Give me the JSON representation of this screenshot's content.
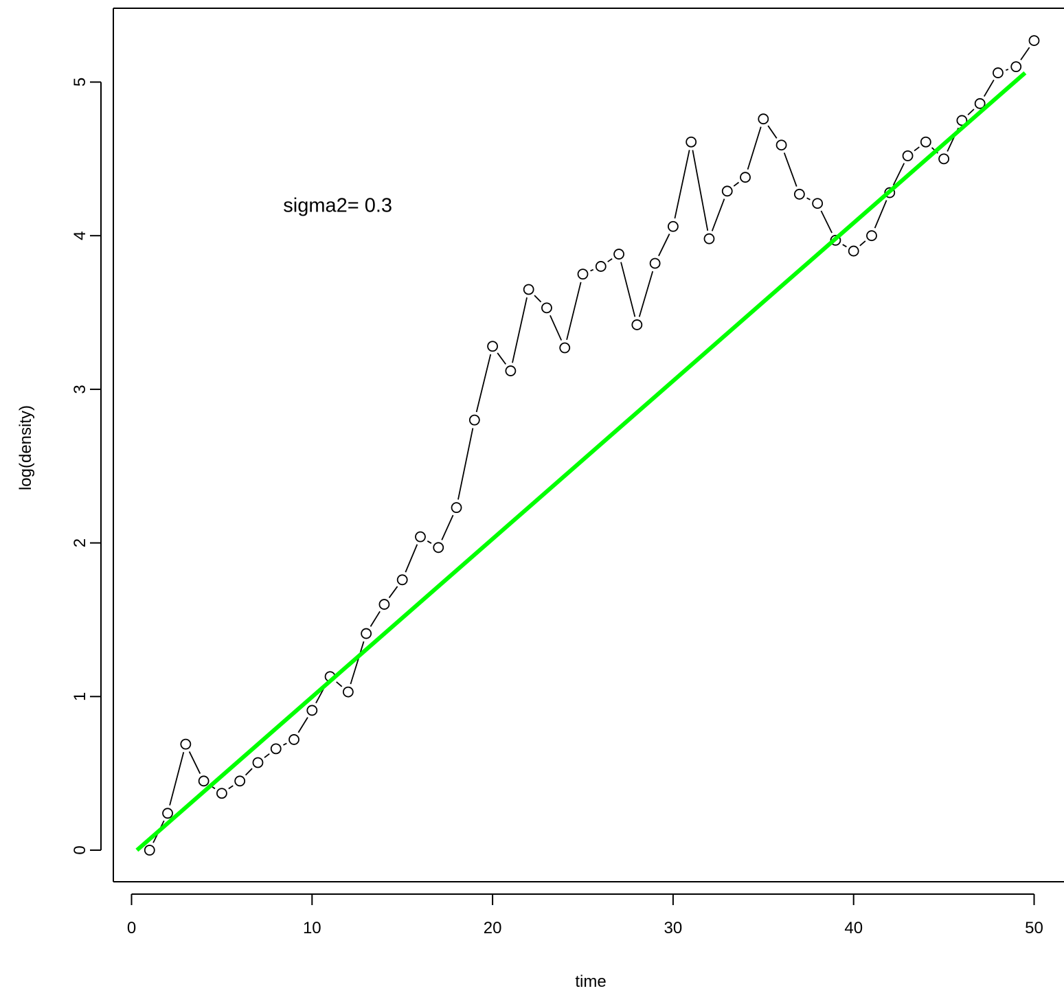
{
  "chart_data": {
    "type": "line",
    "xlabel": "time",
    "ylabel": "log(density)",
    "xlim": [
      0,
      51
    ],
    "ylim": [
      -0.12,
      5.45
    ],
    "x_ticks": [
      0,
      10,
      20,
      30,
      40,
      50
    ],
    "y_ticks": [
      0,
      1,
      2,
      3,
      4,
      5
    ],
    "grid": false,
    "box": "left-bottom-top",
    "annotation": "sigma2= 0.3",
    "annotation_pos": {
      "x": 8.4,
      "y": 4.2
    },
    "series": [
      {
        "type": "line+points",
        "marker": "open-circle",
        "color": "#000000",
        "x": [
          1,
          2,
          3,
          4,
          5,
          6,
          7,
          8,
          9,
          10,
          11,
          12,
          13,
          14,
          15,
          16,
          17,
          18,
          19,
          20,
          21,
          22,
          23,
          24,
          25,
          26,
          27,
          28,
          29,
          30,
          31,
          32,
          33,
          34,
          35,
          36,
          37,
          38,
          39,
          40,
          41,
          42,
          43,
          44,
          45,
          46,
          47,
          48,
          49,
          50
        ],
        "y": [
          0.0,
          0.24,
          0.69,
          0.45,
          0.37,
          0.45,
          0.57,
          0.66,
          0.72,
          0.91,
          1.13,
          1.03,
          1.41,
          1.6,
          1.76,
          2.04,
          1.97,
          2.23,
          2.8,
          3.28,
          3.12,
          3.65,
          3.53,
          3.27,
          3.75,
          3.8,
          3.88,
          3.42,
          3.82,
          4.06,
          4.61,
          3.98,
          4.29,
          4.38,
          4.76,
          4.59,
          4.27,
          4.21,
          3.97,
          3.9,
          4.0,
          4.28,
          4.52,
          4.61,
          4.5,
          4.75,
          4.86,
          5.06,
          5.1,
          5.27
        ]
      },
      {
        "type": "fit-line",
        "color": "#00ff00",
        "x": [
          0.3,
          49.5
        ],
        "y": [
          0.0,
          5.06
        ]
      }
    ]
  }
}
